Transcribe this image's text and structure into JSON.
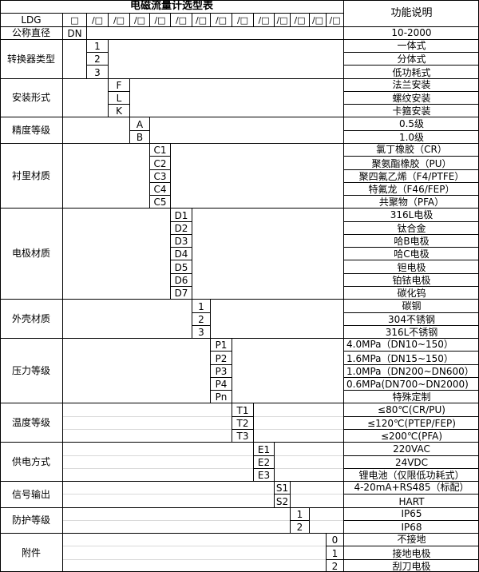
{
  "header": {
    "title": "电磁流量计选型表",
    "function_header": "功能说明",
    "model_prefix": "LDG",
    "first_code_box": "□",
    "code_box": "/□"
  },
  "sections": [
    {
      "label": "公称直径",
      "code_col": -1,
      "rows": [
        {
          "code": "DN",
          "desc": "10-2000"
        }
      ]
    },
    {
      "label": "转换器类型",
      "code_col": 0,
      "rows": [
        {
          "code": "1",
          "desc": "一体式"
        },
        {
          "code": "2",
          "desc": "分体式"
        },
        {
          "code": "3",
          "desc": "低功耗式"
        }
      ]
    },
    {
      "label": "安装形式",
      "code_col": 1,
      "rows": [
        {
          "code": "F",
          "desc": "法兰安装"
        },
        {
          "code": "L",
          "desc": "螺纹安装"
        },
        {
          "code": "K",
          "desc": "卡箍安装"
        }
      ]
    },
    {
      "label": "精度等级",
      "code_col": 2,
      "rows": [
        {
          "code": "A",
          "desc": "0.5级"
        },
        {
          "code": "B",
          "desc": "1.0级"
        }
      ]
    },
    {
      "label": "衬里材质",
      "code_col": 3,
      "rows": [
        {
          "code": "C1",
          "desc": "氯丁橡胶（CR）"
        },
        {
          "code": "C2",
          "desc": "聚氨酯橡胶（PU）"
        },
        {
          "code": "C3",
          "desc": "聚四氟乙烯（F4/PTFE）"
        },
        {
          "code": "C4",
          "desc": "特氟龙（F46/FEP）"
        },
        {
          "code": "C5",
          "desc": "共聚物（PFA）"
        }
      ]
    },
    {
      "label": "电极材质",
      "code_col": 4,
      "rows": [
        {
          "code": "D1",
          "desc": "316L电极"
        },
        {
          "code": "D2",
          "desc": "钛合金"
        },
        {
          "code": "D3",
          "desc": "哈B电极"
        },
        {
          "code": "D4",
          "desc": "哈C电极"
        },
        {
          "code": "D5",
          "desc": "钽电极"
        },
        {
          "code": "D6",
          "desc": "铂铱电极"
        },
        {
          "code": "D7",
          "desc": "碳化钨"
        }
      ]
    },
    {
      "label": "外壳材质",
      "code_col": 5,
      "rows": [
        {
          "code": "1",
          "desc": "碳钢"
        },
        {
          "code": "2",
          "desc": "304不锈钢"
        },
        {
          "code": "3",
          "desc": "316L不锈钢"
        }
      ]
    },
    {
      "label": "压力等级",
      "code_col": 6,
      "rows": [
        {
          "code": "P1",
          "desc": "4.0MPa（DN10~150）",
          "align": "left"
        },
        {
          "code": "P2",
          "desc": "1.6MPa（DN15~150）",
          "align": "left"
        },
        {
          "code": "P3",
          "desc": "1.0MPa（DN200~DN600）",
          "align": "left"
        },
        {
          "code": "P4",
          "desc": "0.6MPa(DN700~DN2000)",
          "align": "left"
        },
        {
          "code": "Pn",
          "desc": "特殊定制"
        }
      ]
    },
    {
      "label": "温度等级",
      "code_col": 7,
      "rows": [
        {
          "code": "T1",
          "desc": "≤80℃(CR/PU)"
        },
        {
          "code": "T2",
          "desc": "≤120℃(PTEP/FEP)"
        },
        {
          "code": "T3",
          "desc": "≤200℃(PFA)"
        }
      ]
    },
    {
      "label": "供电方式",
      "code_col": 8,
      "rows": [
        {
          "code": "E1",
          "desc": "220VAC"
        },
        {
          "code": "E2",
          "desc": "24VDC"
        },
        {
          "code": "E3",
          "desc": "锂电池（仅限低功耗式）"
        }
      ]
    },
    {
      "label": "信号输出",
      "code_col": 9,
      "rows": [
        {
          "code": "S1",
          "desc": "4-20mA+RS485（标配）"
        },
        {
          "code": "S2",
          "desc": "HART"
        }
      ]
    },
    {
      "label": "防护等级",
      "code_col": 10,
      "rows": [
        {
          "code": "1",
          "desc": "IP65"
        },
        {
          "code": "2",
          "desc": "IP68"
        }
      ]
    },
    {
      "label": "附件",
      "code_col": 12,
      "rows": [
        {
          "code": "0",
          "desc": "不接地"
        },
        {
          "code": "1",
          "desc": "接地电极"
        },
        {
          "code": "2",
          "desc": "刮刀电极"
        }
      ]
    }
  ]
}
